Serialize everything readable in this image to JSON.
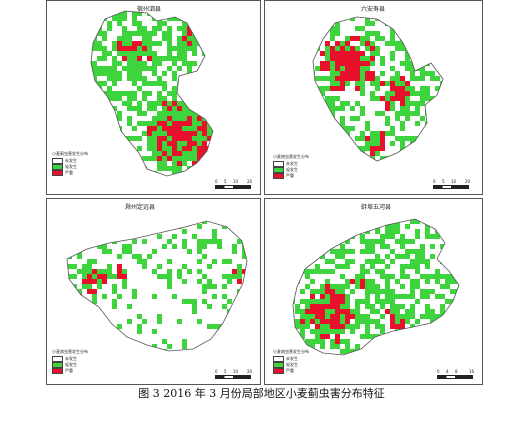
{
  "caption": "图 3   2016 年 3 月份局部地区小麦蓟虫害分布特征",
  "colors": {
    "healthy": "#ffffff",
    "mild": "#3dd43d",
    "severe": "#e8102a",
    "boundary": "#555555"
  },
  "legend": {
    "title_a": "小麦蓟虫害发生分布",
    "title_b": "小麦病虫害发生分布",
    "healthy": "未发生",
    "mild": "轻发生",
    "severe": "严重"
  },
  "panels": [
    {
      "id": "p1",
      "title": "宿州泗县",
      "scale_ticks": [
        "0",
        "5",
        "10",
        "20"
      ],
      "unit": "km"
    },
    {
      "id": "p2",
      "title": "六安寿县",
      "scale_ticks": [
        "0",
        "5",
        "10",
        "20"
      ],
      "unit": "km"
    },
    {
      "id": "p3",
      "title": "滁州定远县",
      "scale_ticks": [
        "0",
        "5",
        "10",
        "20"
      ],
      "unit": "km"
    },
    {
      "id": "p4",
      "title": "蚌埠五河县",
      "scale_ticks": [
        "0",
        "4",
        "8",
        "16"
      ],
      "unit": "km"
    }
  ]
}
